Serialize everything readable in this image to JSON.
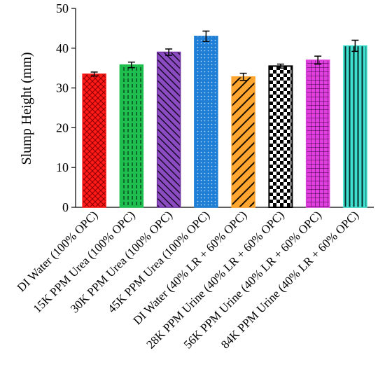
{
  "chart_data": {
    "type": "bar",
    "ylabel": "Slump Height (mm)",
    "ylim": [
      0,
      50
    ],
    "yticks": [
      0,
      10,
      20,
      30,
      40,
      50
    ],
    "grid": false,
    "categories": [
      "DI Water (100% OPC)",
      "15K PPM Urea (100% OPC)",
      "30K PPM Urea (100% OPC)",
      "45K PPM Urea (100% OPC)",
      "DI Water (40% LR + 60% OPC)",
      "28K PPM Urine (40% LR + 60% OPC)",
      "56K PPM Urine (40% LR + 60% OPC)",
      "84K PPM Urine (40% LR + 60% OPC)"
    ],
    "values": [
      33.5,
      35.8,
      39.0,
      43.0,
      32.8,
      35.5,
      37.0,
      40.6
    ],
    "errors": [
      0.5,
      0.7,
      0.8,
      1.3,
      0.9,
      0.5,
      1.0,
      1.4
    ],
    "colors": [
      "#ff1a1a",
      "#1fbf4f",
      "#7030a0",
      "#1f7fd6",
      "#ffa530",
      "#ffffff",
      "#e040e0",
      "#3fe0d0"
    ],
    "patterns": [
      "crosshatch",
      "dashed-vertical",
      "diagonal",
      "dotted-grid",
      "diagonal-wide",
      "checker",
      "grid",
      "vertical-stripes"
    ]
  }
}
